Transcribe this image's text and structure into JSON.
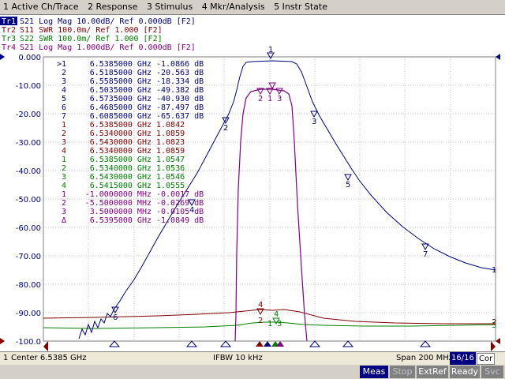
{
  "menu": [
    "1 Active Ch/Trace",
    "2 Response",
    "3 Stimulus",
    "4 Mkr/Analysis",
    "5 Instr State"
  ],
  "traces": [
    {
      "id": "Tr1",
      "text": "S21 Log Mag 10.00dB/ Ref 0.000dB [F2]",
      "color": "#000080"
    },
    {
      "id": "Tr2",
      "text": "S11 SWR 100.0m/ Ref 1.000 [F2]",
      "color": "#800000"
    },
    {
      "id": "Tr3",
      "text": "S22 SWR 100.0m/ Ref 1.000 [F2]",
      "color": "#008000"
    },
    {
      "id": "Tr4",
      "text": "S21 Log Mag 1.000dB/ Ref 0.000dB [F2]",
      "color": "#800080"
    }
  ],
  "y_labels": [
    "0.000",
    "-10.00",
    "-20.00",
    "-30.00",
    "-40.00",
    "-50.00",
    "-60.00",
    "-70.00",
    "-80.00",
    "-90.00",
    "-100.0"
  ],
  "marker_table": [
    {
      "n": ">1",
      "f": "6.5385000 GHz",
      "v": "-1.0866 dB",
      "color": "#000080"
    },
    {
      "n": "2",
      "f": "6.5185000 GHz",
      "v": "-20.563 dB",
      "color": "#000080"
    },
    {
      "n": "3",
      "f": "6.5585000 GHz",
      "v": "-18.334 dB",
      "color": "#000080"
    },
    {
      "n": "4",
      "f": "6.5035000 GHz",
      "v": "-49.382 dB",
      "color": "#000080"
    },
    {
      "n": "5",
      "f": "6.5735000 GHz",
      "v": "-40.930 dB",
      "color": "#000080"
    },
    {
      "n": "6",
      "f": "6.4685000 GHz",
      "v": "-87.497 dB",
      "color": "#000080"
    },
    {
      "n": "7",
      "f": "6.6085000 GHz",
      "v": "-65.637 dB",
      "color": "#000080"
    },
    {
      "n": "1",
      "f": "6.5385000 GHz",
      "v": "1.0842",
      "color": "#800000"
    },
    {
      "n": "2",
      "f": "6.5340000 GHz",
      "v": "1.0859",
      "color": "#800000"
    },
    {
      "n": "3",
      "f": "6.5430000 GHz",
      "v": "1.0823",
      "color": "#800000"
    },
    {
      "n": "4",
      "f": "6.5340000 GHz",
      "v": "1.0859",
      "color": "#800000"
    },
    {
      "n": "1",
      "f": "6.5385000 GHz",
      "v": "1.0547",
      "color": "#008000"
    },
    {
      "n": "2",
      "f": "6.5340000 GHz",
      "v": "1.0536",
      "color": "#008000"
    },
    {
      "n": "3",
      "f": "6.5430000 GHz",
      "v": "1.0546",
      "color": "#008000"
    },
    {
      "n": "4",
      "f": "6.5415000 GHz",
      "v": "1.0555",
      "color": "#008000"
    },
    {
      "n": "1",
      "f": "-1.0000000 MHz",
      "v": "-0.0017 dB",
      "color": "#800080"
    },
    {
      "n": "2",
      "f": "-5.5000000 MHz",
      "v": "-0.0269 dB",
      "color": "#800080"
    },
    {
      "n": "3",
      "f": "3.5000000 MHz",
      "v": "-0.0105 dB",
      "color": "#800080"
    },
    {
      "n": "Δ",
      "f": "6.5395000 GHz",
      "v": "-1.0849 dB",
      "color": "#800080"
    }
  ],
  "status": {
    "ch": "1",
    "center": "Center 6.5385 GHz",
    "ifbw": "IFBW 10 kHz",
    "span": "Span 200 MHz",
    "points": "16/16",
    "cor": "Cor"
  },
  "footer": {
    "meas": "Meas",
    "stop": "Stop",
    "extref": "ExtRef",
    "ready": "Ready",
    "svc": "Svc"
  },
  "colors": {
    "tr1": "#000080",
    "tr2": "#800000",
    "tr3": "#008000",
    "tr4": "#800080"
  }
}
